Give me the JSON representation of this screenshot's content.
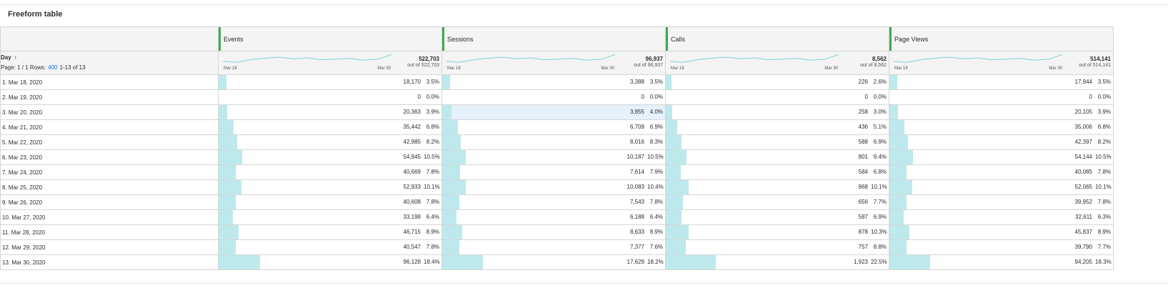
{
  "panel": {
    "title": "Freeform table"
  },
  "dimension": {
    "label": "Day",
    "sort_icon": "arrow-up-icon",
    "page_text": "Page: 1 / 1 Rows:",
    "rows_value": "400",
    "range_text": "1-13 of 13"
  },
  "colors": {
    "bar": "#bde9ec",
    "sparkline": "#7fd3dc",
    "column_grip": "#3eab52",
    "link": "#1473e6"
  },
  "metrics": [
    {
      "name": "Events",
      "total": "522,703",
      "out_of": "out of 522,703",
      "spark_start": "Mar 18",
      "spark_end": "Mar 30"
    },
    {
      "name": "Sessions",
      "total": "96,937",
      "out_of": "out of 96,937",
      "spark_start": "Mar 18",
      "spark_end": "Mar 30"
    },
    {
      "name": "Calls",
      "total": "8,562",
      "out_of": "out of 8,562",
      "spark_start": "Mar 18",
      "spark_end": "Mar 30"
    },
    {
      "name": "Page Views",
      "total": "514,141",
      "out_of": "out of 514,141",
      "spark_start": "Mar 18",
      "spark_end": "Mar 30"
    }
  ],
  "rows": [
    {
      "label": "1. Mar 18, 2020",
      "cells": [
        {
          "v": "18,170",
          "p": "3.5%",
          "f": 0.035
        },
        {
          "v": "3,388",
          "p": "3.5%",
          "f": 0.035
        },
        {
          "v": "226",
          "p": "2.6%",
          "f": 0.026
        },
        {
          "v": "17,944",
          "p": "3.5%",
          "f": 0.035
        }
      ]
    },
    {
      "label": "2. Mar 19, 2020",
      "cells": [
        {
          "v": "0",
          "p": "0.0%",
          "f": 0
        },
        {
          "v": "0",
          "p": "0.0%",
          "f": 0
        },
        {
          "v": "0",
          "p": "0.0%",
          "f": 0
        },
        {
          "v": "0",
          "p": "0.0%",
          "f": 0
        }
      ]
    },
    {
      "label": "3. Mar 20, 2020",
      "cells": [
        {
          "v": "20,363",
          "p": "3.9%",
          "f": 0.039
        },
        {
          "v": "3,855",
          "p": "4.0%",
          "f": 0.04
        },
        {
          "v": "258",
          "p": "3.0%",
          "f": 0.03
        },
        {
          "v": "20,105",
          "p": "3.9%",
          "f": 0.039
        }
      ]
    },
    {
      "label": "4. Mar 21, 2020",
      "cells": [
        {
          "v": "35,442",
          "p": "6.8%",
          "f": 0.068
        },
        {
          "v": "6,709",
          "p": "6.9%",
          "f": 0.069
        },
        {
          "v": "436",
          "p": "5.1%",
          "f": 0.051
        },
        {
          "v": "35,006",
          "p": "6.8%",
          "f": 0.068
        }
      ]
    },
    {
      "label": "5. Mar 22, 2020",
      "cells": [
        {
          "v": "42,985",
          "p": "8.2%",
          "f": 0.082
        },
        {
          "v": "8,016",
          "p": "8.3%",
          "f": 0.083
        },
        {
          "v": "588",
          "p": "6.9%",
          "f": 0.069
        },
        {
          "v": "42,397",
          "p": "8.2%",
          "f": 0.082
        }
      ]
    },
    {
      "label": "6. Mar 23, 2020",
      "cells": [
        {
          "v": "54,945",
          "p": "10.5%",
          "f": 0.105
        },
        {
          "v": "10,187",
          "p": "10.5%",
          "f": 0.105
        },
        {
          "v": "801",
          "p": "9.4%",
          "f": 0.094
        },
        {
          "v": "54,144",
          "p": "10.5%",
          "f": 0.105
        }
      ]
    },
    {
      "label": "7. Mar 24, 2020",
      "cells": [
        {
          "v": "40,669",
          "p": "7.8%",
          "f": 0.078
        },
        {
          "v": "7,614",
          "p": "7.9%",
          "f": 0.079
        },
        {
          "v": "584",
          "p": "6.8%",
          "f": 0.068
        },
        {
          "v": "40,085",
          "p": "7.8%",
          "f": 0.078
        }
      ]
    },
    {
      "label": "8. Mar 25, 2020",
      "cells": [
        {
          "v": "52,933",
          "p": "10.1%",
          "f": 0.101
        },
        {
          "v": "10,083",
          "p": "10.4%",
          "f": 0.104
        },
        {
          "v": "868",
          "p": "10.1%",
          "f": 0.101
        },
        {
          "v": "52,065",
          "p": "10.1%",
          "f": 0.101
        }
      ]
    },
    {
      "label": "9. Mar 26, 2020",
      "cells": [
        {
          "v": "40,608",
          "p": "7.8%",
          "f": 0.078
        },
        {
          "v": "7,543",
          "p": "7.8%",
          "f": 0.078
        },
        {
          "v": "656",
          "p": "7.7%",
          "f": 0.077
        },
        {
          "v": "39,952",
          "p": "7.8%",
          "f": 0.078
        }
      ]
    },
    {
      "label": "10. Mar 27, 2020",
      "cells": [
        {
          "v": "33,198",
          "p": "6.4%",
          "f": 0.064
        },
        {
          "v": "6,188",
          "p": "6.4%",
          "f": 0.064
        },
        {
          "v": "587",
          "p": "6.9%",
          "f": 0.069
        },
        {
          "v": "32,611",
          "p": "6.3%",
          "f": 0.063
        }
      ]
    },
    {
      "label": "11. Mar 28, 2020",
      "cells": [
        {
          "v": "46,715",
          "p": "8.9%",
          "f": 0.089
        },
        {
          "v": "8,633",
          "p": "8.9%",
          "f": 0.089
        },
        {
          "v": "878",
          "p": "10.3%",
          "f": 0.103
        },
        {
          "v": "45,837",
          "p": "8.9%",
          "f": 0.089
        }
      ]
    },
    {
      "label": "12. Mar 29, 2020",
      "cells": [
        {
          "v": "40,547",
          "p": "7.8%",
          "f": 0.078
        },
        {
          "v": "7,377",
          "p": "7.6%",
          "f": 0.076
        },
        {
          "v": "757",
          "p": "8.8%",
          "f": 0.088
        },
        {
          "v": "39,790",
          "p": "7.7%",
          "f": 0.077
        }
      ]
    },
    {
      "label": "13. Mar 30, 2020",
      "cells": [
        {
          "v": "96,128",
          "p": "18.4%",
          "f": 0.184
        },
        {
          "v": "17,629",
          "p": "18.2%",
          "f": 0.182
        },
        {
          "v": "1,923",
          "p": "22.5%",
          "f": 0.225
        },
        {
          "v": "94,205",
          "p": "18.3%",
          "f": 0.183
        }
      ]
    }
  ],
  "selected_cell": {
    "row": 2,
    "col": 1
  }
}
